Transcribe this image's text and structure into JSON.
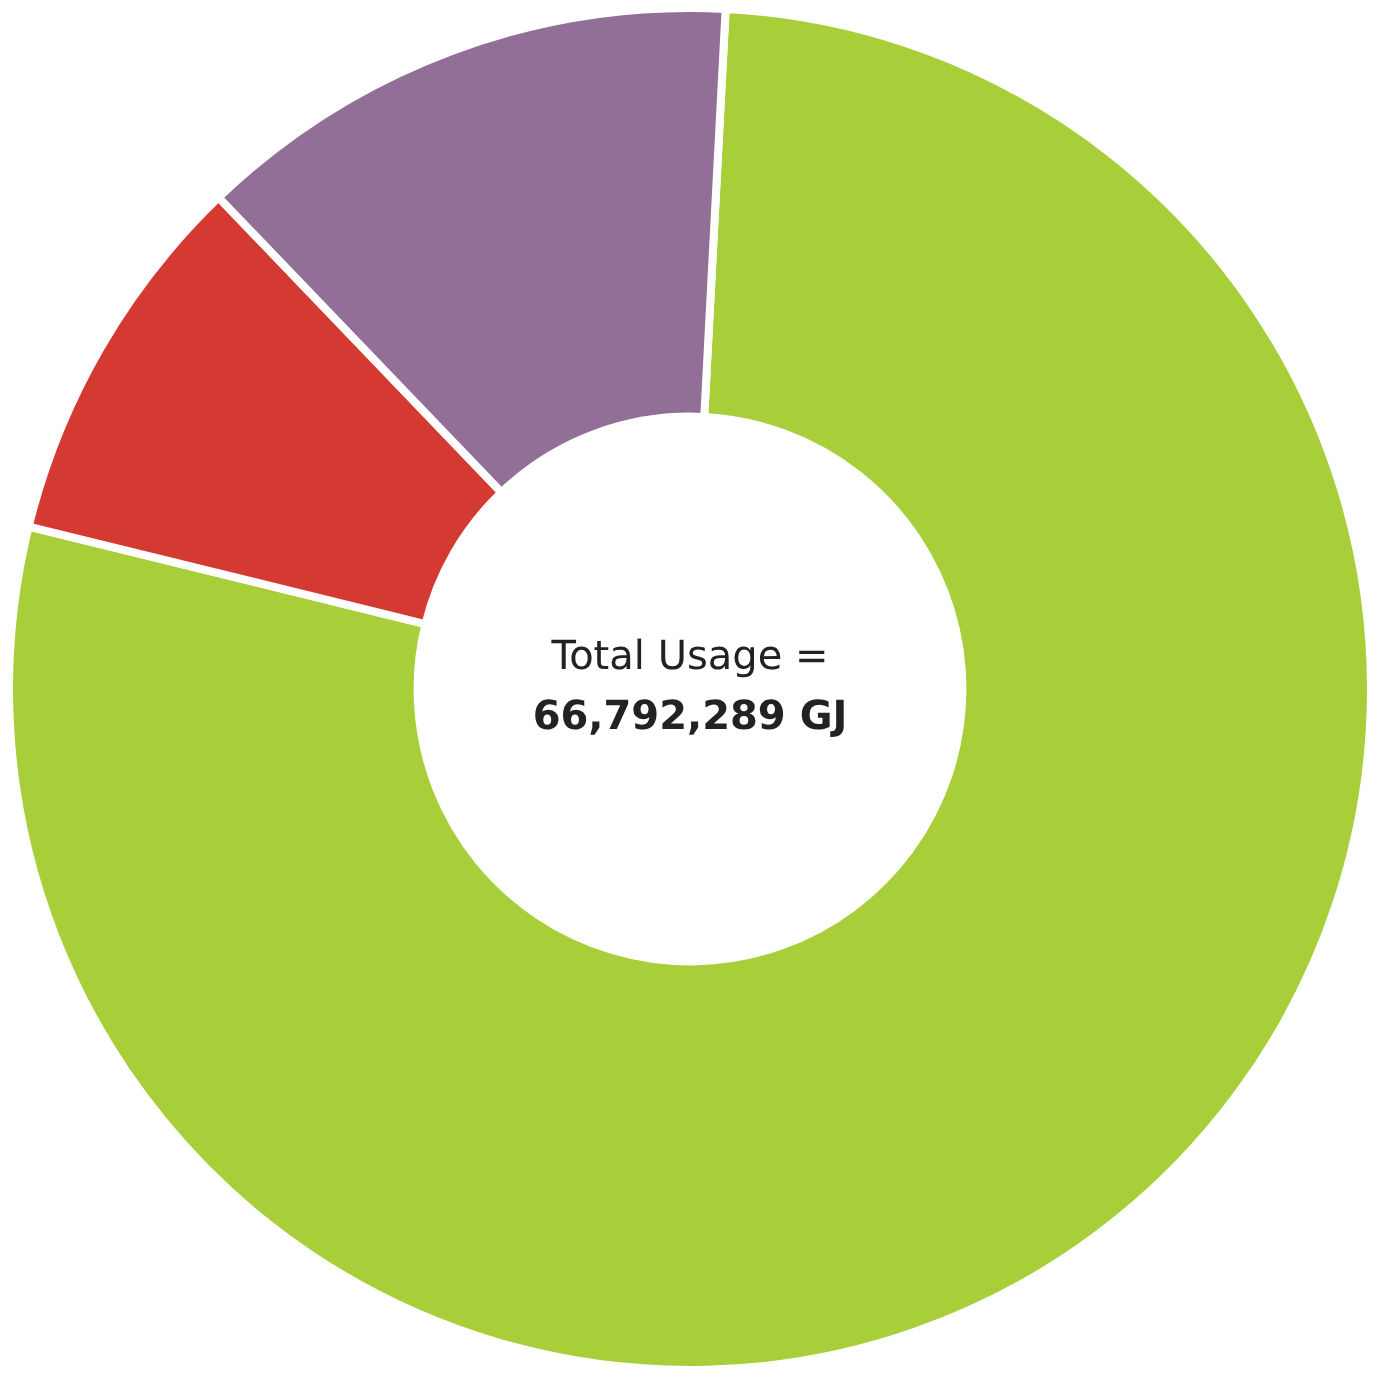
{
  "chart_data": {
    "type": "donut",
    "categories": [
      null,
      null,
      null
    ],
    "values": [
      78,
      9,
      13
    ],
    "colors": [
      "#a8cf3a",
      "#d43a32",
      "#916f97"
    ],
    "annotations": [
      "Total Usage =",
      "66,792,289 GJ"
    ]
  }
}
